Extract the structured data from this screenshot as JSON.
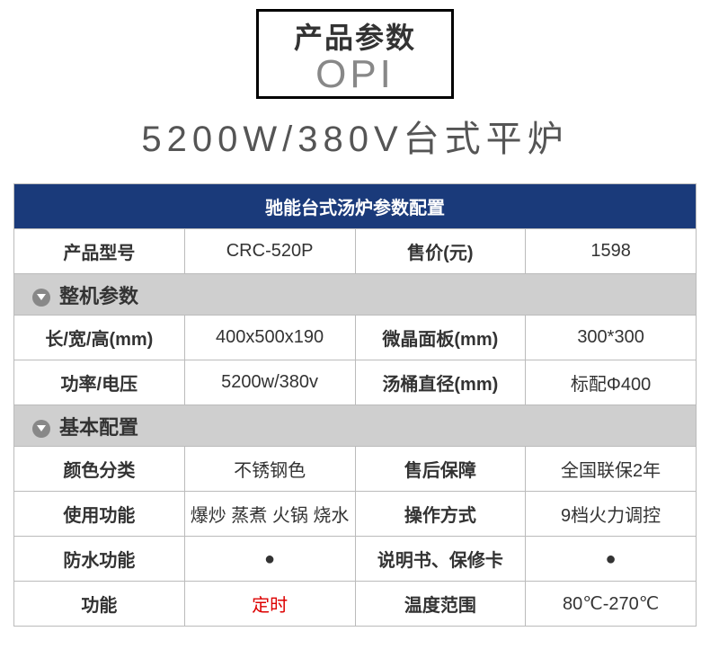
{
  "header": {
    "title": "产品参数",
    "subtitle_logo": "OPI",
    "tagline": "5200W/380V台式平炉"
  },
  "table": {
    "banner": "驰能台式汤炉参数配置",
    "top_row": {
      "model_label": "产品型号",
      "model_value": "CRC-520P",
      "price_label": "售价(元)",
      "price_value": "1598"
    },
    "section1": {
      "heading": "整机参数",
      "rows": [
        {
          "l1": "长/宽/高(mm)",
          "v1": "400x500x190",
          "l2": "微晶面板(mm)",
          "v2": "300*300"
        },
        {
          "l1": "功率/电压",
          "v1": "5200w/380v",
          "l2": "汤桶直径(mm)",
          "v2": "标配Φ400"
        }
      ]
    },
    "section2": {
      "heading": "基本配置",
      "rows": [
        {
          "l1": "颜色分类",
          "v1": "不锈钢色",
          "l2": "售后保障",
          "v2": "全国联保2年"
        },
        {
          "l1": "使用功能",
          "v1": "爆炒 蒸煮 火锅 烧水",
          "l2": "操作方式",
          "v2": "9档火力调控"
        },
        {
          "l1": "防水功能",
          "v1": "●",
          "l2": "说明书、保修卡",
          "v2": "●",
          "v1_class": "dot",
          "v2_class": "dot"
        },
        {
          "l1": "功能",
          "v1": "定时",
          "l2": "温度范围",
          "v2": "80℃-270℃",
          "v1_class": "red"
        }
      ]
    }
  }
}
